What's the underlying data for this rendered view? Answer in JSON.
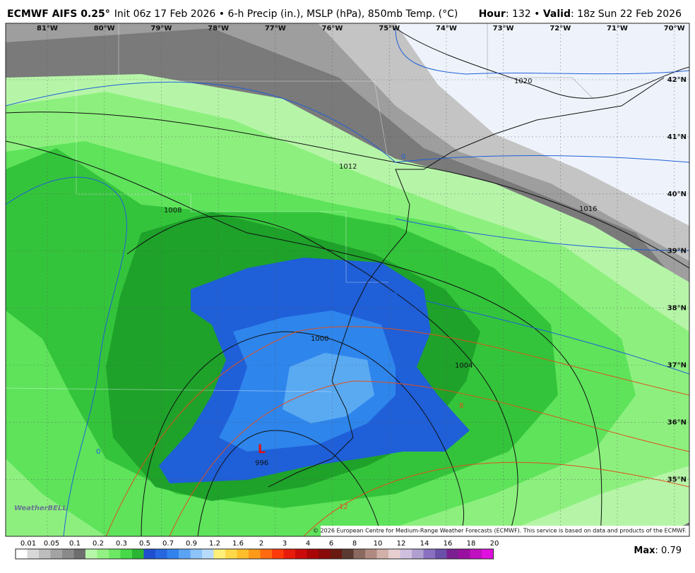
{
  "header": {
    "model": "ECMWF AIFS 0.25°",
    "description": "Init 06z 17 Feb 2026 • 6-h Precip (in.), MSLP (hPa), 850mb Temp. (°C)",
    "hour_label": "Hour",
    "hour_value": ": 132 • ",
    "valid_label": "Valid",
    "valid_value": ": 18z Sun 22 Feb 2026"
  },
  "map": {
    "lon_labels": [
      "81°W",
      "80°W",
      "79°W",
      "78°W",
      "77°W",
      "76°W",
      "75°W",
      "74°W",
      "73°W",
      "72°W",
      "71°W",
      "70°W"
    ],
    "lat_labels": [
      "42°N",
      "41°N",
      "40°N",
      "39°N",
      "38°N",
      "37°N",
      "36°N",
      "35°N"
    ],
    "isobar_labels": [
      "1020",
      "1012",
      "1016",
      "1008",
      "1004",
      "1000",
      "996"
    ],
    "low_marker": "L",
    "temp_labels": [
      "0",
      "0",
      "8",
      "12"
    ],
    "logo": "WeatherBELL",
    "copyright": "© 2026 European Centre for Medium-Range Weather Forecasts (ECMWF). This service is based on data and products of the ECMWF."
  },
  "colorbar": {
    "labels": [
      "0.01",
      "0.05",
      "0.1",
      "0.2",
      "0.3",
      "0.5",
      "0.7",
      "0.9",
      "1.2",
      "1.6",
      "2",
      "3",
      "4",
      "6",
      "8",
      "10",
      "12",
      "14",
      "16",
      "18",
      "20"
    ],
    "colors": [
      "#ffffff",
      "#d8d8d8",
      "#bdbdbd",
      "#a3a3a3",
      "#8a8a8a",
      "#6e6e6e",
      "#b7f7aa",
      "#93f183",
      "#6de864",
      "#46d948",
      "#2bb534",
      "#1f4fd0",
      "#2767e0",
      "#3282ee",
      "#5ba3f5",
      "#8cc3f8",
      "#b7dcfb",
      "#fff07a",
      "#ffd84a",
      "#ffbf2a",
      "#ff9a1a",
      "#ff6a10",
      "#ff3a0a",
      "#e81a0a",
      "#cc0a0a",
      "#aa0505",
      "#8a0a0a",
      "#6a1a10",
      "#5a3a30",
      "#8a6a60",
      "#b08a80",
      "#d0b0a8",
      "#e8d0d0",
      "#d0c0e0",
      "#b0a0d0",
      "#8a70c0",
      "#6a50a8",
      "#7a2090",
      "#9a10a0",
      "#c010c0",
      "#e010e0"
    ]
  },
  "footer": {
    "max_label": "Max",
    "max_value": ": 0.79"
  }
}
